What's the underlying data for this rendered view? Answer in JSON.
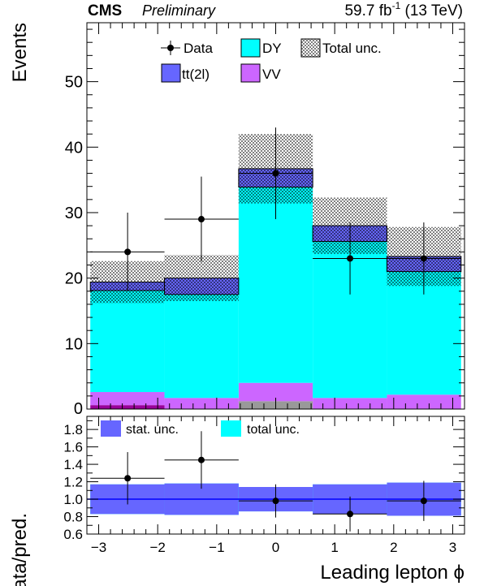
{
  "header": {
    "experiment": "CMS",
    "status": "Preliminary",
    "lumi_base": "59.7 fb",
    "lumi_exp": "-1",
    "lumi_tail": " (13 TeV)"
  },
  "colors": {
    "dy": "#00ffff",
    "ttbar": "#6666ff",
    "vv": "#cc66ff",
    "other1": "#990099",
    "other2": "#999999",
    "data": "#000000",
    "ratio_line": "#0000ff"
  },
  "chart_data": [
    {
      "type": "bar",
      "stacked": true,
      "ylabel": "Events",
      "ylim": [
        0,
        59
      ],
      "xlim": [
        -3.2,
        3.2
      ],
      "bin_edges": [
        -3.142,
        -1.885,
        -0.628,
        0.628,
        1.885,
        3.142
      ],
      "series": [
        {
          "key": "other1",
          "values": [
            0.6,
            0.0,
            0.0,
            0.0,
            0.0
          ]
        },
        {
          "key": "other2",
          "values": [
            0.0,
            0.0,
            1.2,
            0.0,
            0.0
          ]
        },
        {
          "name": "VV",
          "key": "vv",
          "values": [
            2.0,
            1.7,
            2.8,
            1.7,
            2.2
          ]
        },
        {
          "name": "DY",
          "key": "dy",
          "values": [
            15.5,
            15.8,
            29.9,
            23.9,
            18.8
          ]
        },
        {
          "name": "tt(2l)",
          "key": "ttbar",
          "values": [
            1.3,
            2.5,
            2.8,
            2.4,
            2.3
          ]
        }
      ],
      "unc_band": {
        "name": "Total unc.",
        "values": [
          3.2,
          3.5,
          5.3,
          4.3,
          4.5
        ]
      },
      "data": {
        "name": "Data",
        "x": [
          -2.51,
          -1.26,
          0.0,
          1.26,
          2.51
        ],
        "y": [
          24,
          29,
          36,
          23,
          23
        ],
        "yerr": [
          6.0,
          6.5,
          7.0,
          5.5,
          5.5
        ]
      },
      "yticks": [
        10,
        20,
        30,
        40,
        50
      ],
      "legend": [
        "Data",
        "DY",
        "Total unc.",
        "tt(2l)",
        "VV"
      ]
    },
    {
      "type": "scatter",
      "ylabel": "Data/pred.",
      "xlabel": "Leading lepton ϕ",
      "ylim": [
        0.6,
        1.95
      ],
      "xlim": [
        -3.2,
        3.2
      ],
      "bin_edges": [
        -3.142,
        -1.885,
        -0.628,
        0.628,
        1.885,
        3.142
      ],
      "stat_unc": {
        "name": "stat. unc.",
        "halfwidths": [
          0.17,
          0.18,
          0.14,
          0.17,
          0.19
        ]
      },
      "total_unc": {
        "name": "total unc.",
        "halfwidths": [
          0.17,
          0.18,
          0.14,
          0.17,
          0.19
        ]
      },
      "ratio": {
        "x": [
          -2.51,
          -1.26,
          0.0,
          1.26,
          2.51
        ],
        "y": [
          1.24,
          1.45,
          0.98,
          0.83,
          0.98
        ],
        "yerr": [
          0.3,
          0.33,
          0.19,
          0.2,
          0.23
        ]
      },
      "yticks": [
        "0.6",
        "0.8",
        "1.0",
        "1.2",
        "1.4",
        "1.6",
        "1.8"
      ],
      "xticks": [
        "−3",
        "−2",
        "−1",
        "0",
        "1",
        "2",
        "3"
      ],
      "xtick_values": [
        -3,
        -2,
        -1,
        0,
        1,
        2,
        3
      ],
      "legend": [
        "stat. unc.",
        "total unc."
      ]
    }
  ]
}
